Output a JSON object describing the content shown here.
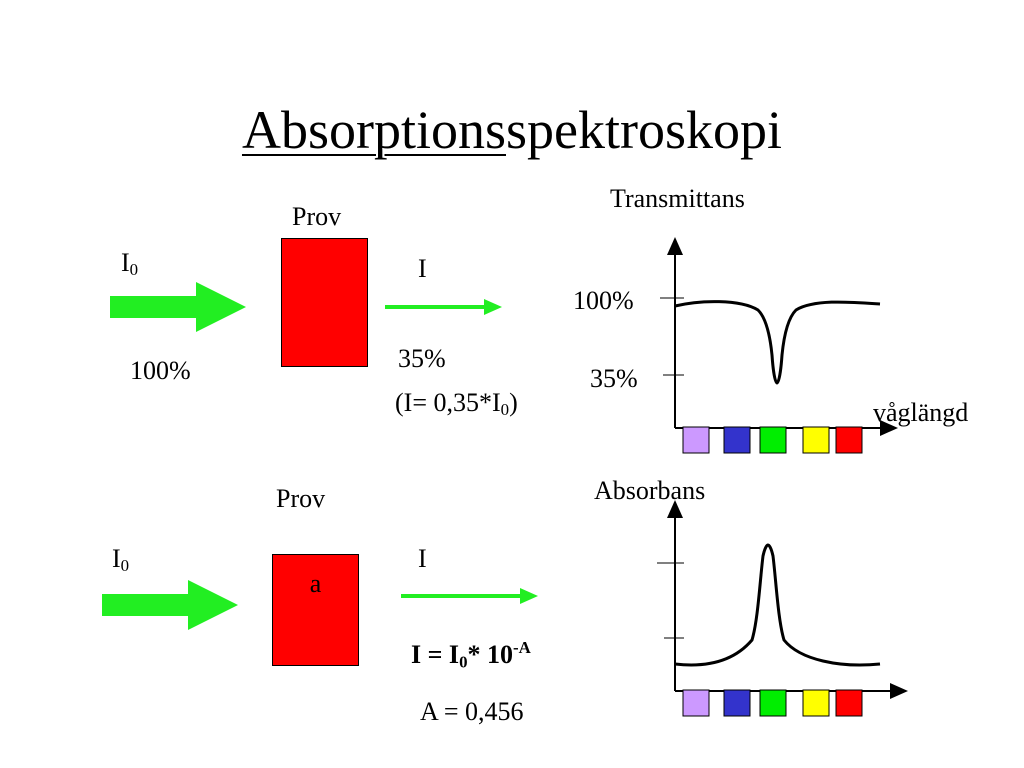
{
  "title": {
    "underlined_part": "Absorptions",
    "rest": "spektroskopi"
  },
  "top": {
    "sample_label": "Prov",
    "incident_label": "I",
    "incident_sub": "0",
    "incident_percent": "100%",
    "transmitted_label": "I",
    "transmitted_percent": "35%",
    "relation_prefix": "(I= 0,35*I",
    "relation_sub": "0",
    "relation_suffix": ")"
  },
  "bottom": {
    "sample_label": "Prov",
    "sample_inner": "a",
    "incident_label": "I",
    "incident_sub": "0",
    "transmitted_label": "I",
    "formula_prefix": "I = I",
    "formula_sub": "0",
    "formula_mid": "* 10",
    "formula_sup": "-A",
    "absorbance_value": "A = 0,456"
  },
  "transmittance_plot": {
    "title": "Transmittans",
    "tick_100": "100%",
    "tick_35": "35%",
    "x_label": "våglängd"
  },
  "absorbance_plot": {
    "title": "Absorbans"
  },
  "colors": {
    "arrow": "#22ee22",
    "sample": "#ff0000",
    "swatches": [
      "#cc99ff",
      "#3333cc",
      "#00ee00",
      "#ffff00",
      "#ff0000"
    ]
  }
}
